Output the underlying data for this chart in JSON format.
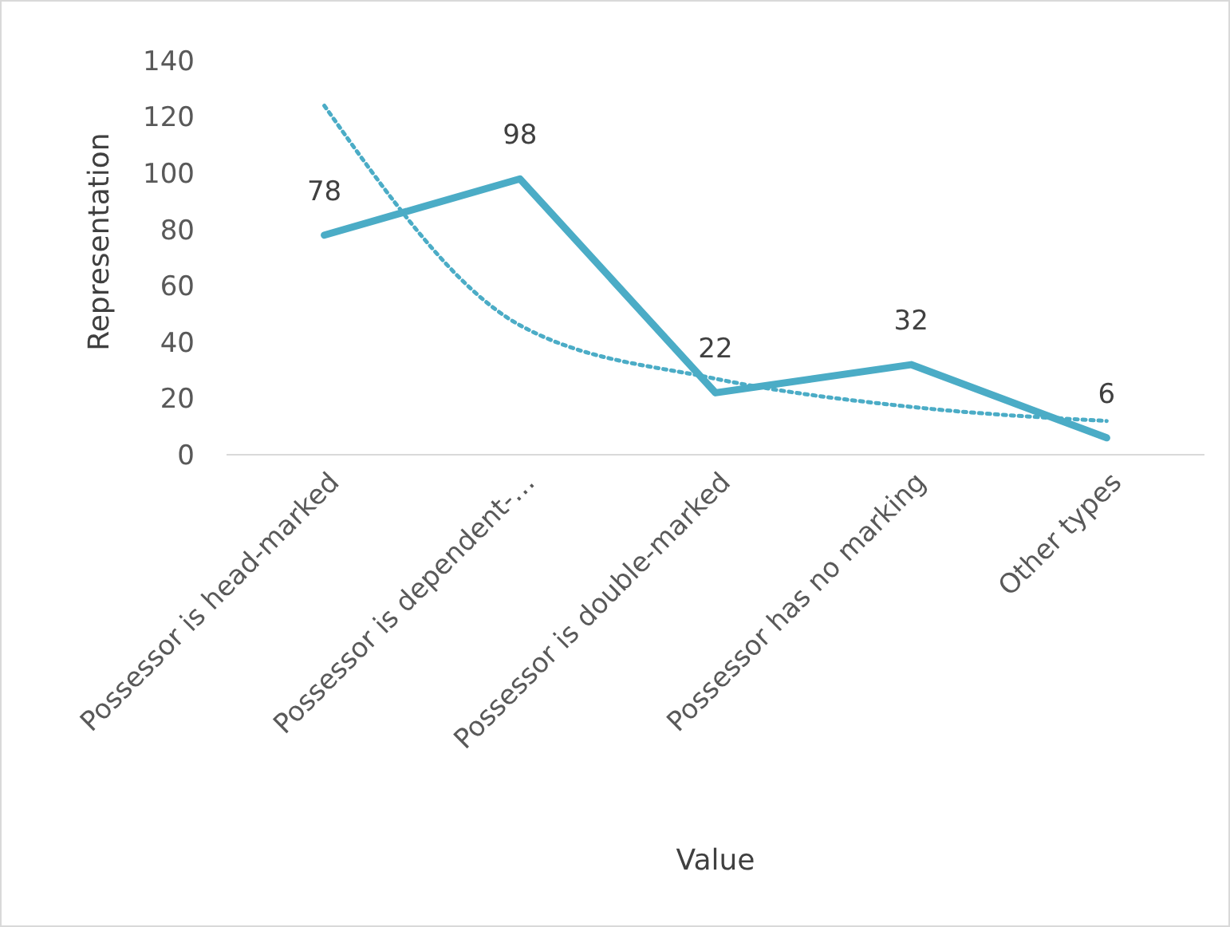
{
  "chart_data": {
    "type": "line",
    "xlabel": "Value",
    "ylabel": "Representation",
    "categories": [
      "Possessor is head-marked",
      "Possessor is dependent-…",
      "Possessor is double-marked",
      "Possessor has no marking",
      "Other types"
    ],
    "series": [
      {
        "color": "#4bacc6",
        "values": [
          78,
          98,
          22,
          32,
          6
        ],
        "value_labels": [
          "78",
          "98",
          "22",
          "32",
          "6"
        ]
      },
      {
        "type": "line",
        "color": "#4bacc6",
        "line_style": "dotted",
        "values": [
          124,
          46,
          27,
          17,
          12
        ]
      }
    ],
    "ylim": [
      0,
      140
    ],
    "yticks": [
      0,
      20,
      40,
      60,
      80,
      100,
      120,
      140
    ],
    "grid": false,
    "marker": "none"
  }
}
